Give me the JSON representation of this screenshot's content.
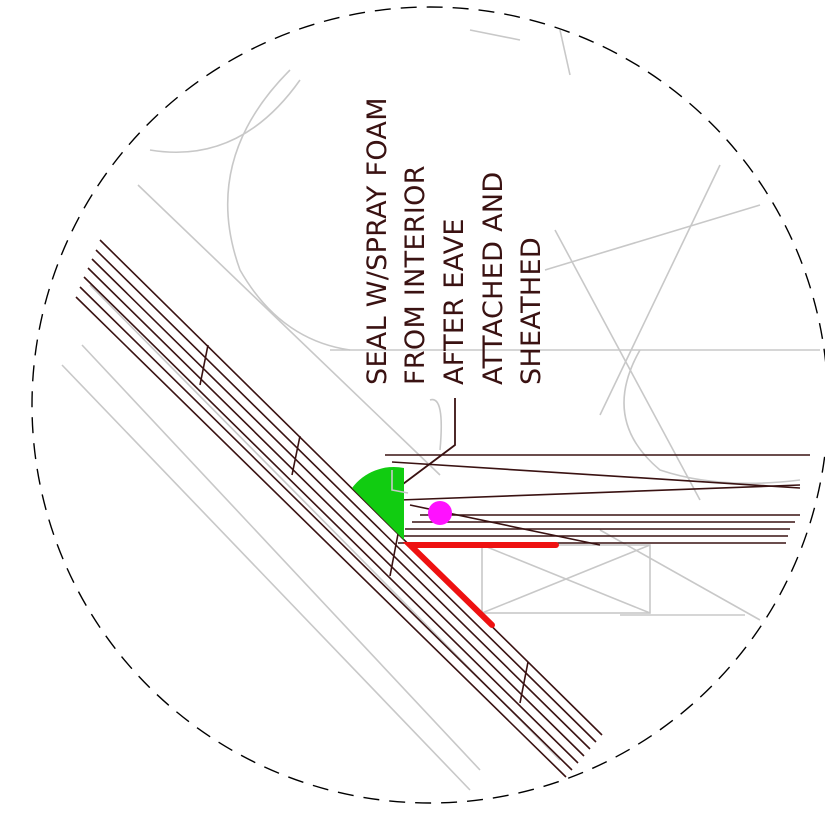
{
  "annotation": {
    "lines": [
      "SEAL W/SPRAY FOAM",
      "FROM INTERIOR",
      "AFTER EAVE",
      "ATTACHED AND",
      "SHEATHED"
    ]
  },
  "colors": {
    "background": "#ffffff",
    "linework": "#3a1212",
    "background_linework": "#c8c8c8",
    "detail_boundary": "#000000",
    "spray_foam": "#11cc11",
    "air_barrier_tape": "#ee1111",
    "sealant_point": "#ff11ff"
  }
}
